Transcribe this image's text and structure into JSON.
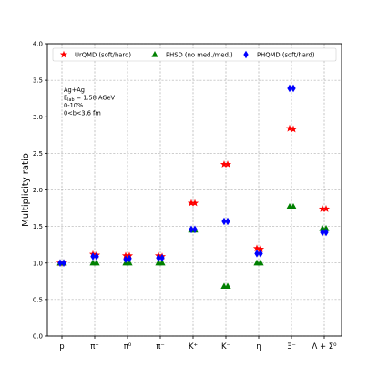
{
  "chart_data": {
    "type": "scatter",
    "ylabel": "Multiplicity ratio",
    "ylim": [
      0.0,
      4.0
    ],
    "yticks": [
      "0.0",
      "0.5",
      "1.0",
      "1.5",
      "2.0",
      "2.5",
      "3.0",
      "3.5",
      "4.0"
    ],
    "grid": true,
    "legend_position": "top",
    "categories": [
      "p",
      "π⁺",
      "π⁰",
      "π⁻",
      "K⁺",
      "K⁻",
      "η",
      "Ξ⁻",
      "Λ + Σ⁰"
    ],
    "annotation": [
      "Ag+Ag",
      "E_lab = 1.58 AGeV",
      "0-10%",
      "0<b<3.6 fm"
    ],
    "series": [
      {
        "name": "UrQMD (soft/hard)",
        "marker": "star",
        "color": "#ff0000",
        "offset": -1,
        "values": [
          [
            1.0,
            1.0
          ],
          [
            1.12,
            1.11
          ],
          [
            1.1,
            1.1
          ],
          [
            1.1,
            1.09
          ],
          [
            1.82,
            1.82
          ],
          [
            2.35,
            2.35
          ],
          [
            1.2,
            1.19
          ],
          [
            2.84,
            2.83
          ],
          [
            1.74,
            1.74
          ]
        ]
      },
      {
        "name": "PHSD (no med./med.)",
        "marker": "triangle",
        "color": "#008000",
        "offset": 0,
        "values": [
          [
            1.0,
            1.0
          ],
          [
            1.0,
            1.0
          ],
          [
            1.0,
            1.0
          ],
          [
            1.0,
            1.0
          ],
          [
            1.45,
            1.45
          ],
          [
            0.68,
            0.68
          ],
          [
            1.0,
            1.0
          ],
          [
            1.77,
            1.77
          ],
          [
            1.47,
            1.47
          ]
        ]
      },
      {
        "name": "PHQMD (soft/hard)",
        "marker": "diamond",
        "color": "#0000ff",
        "offset": 1,
        "values": [
          [
            1.0,
            1.0
          ],
          [
            1.09,
            1.09
          ],
          [
            1.05,
            1.06
          ],
          [
            1.07,
            1.07
          ],
          [
            1.46,
            1.46
          ],
          [
            1.57,
            1.57
          ],
          [
            1.13,
            1.13
          ],
          [
            3.39,
            3.39
          ],
          [
            1.42,
            1.42
          ]
        ]
      }
    ]
  }
}
